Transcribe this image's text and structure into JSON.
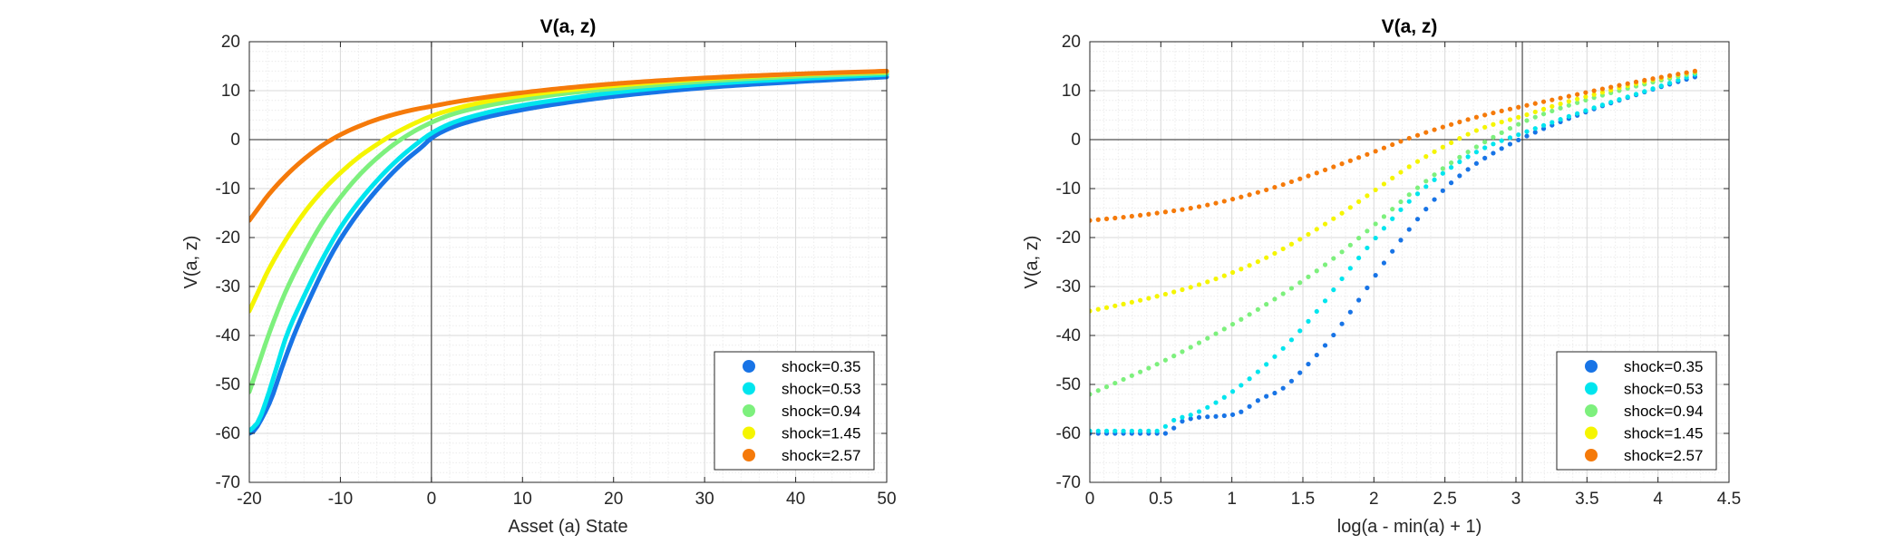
{
  "chart_data": [
    {
      "type": "line",
      "title": "V(a, z)",
      "xlabel": "Asset (a) State",
      "ylabel": "V(a, z)",
      "xlim": [
        -20,
        50
      ],
      "ylim": [
        -70,
        20
      ],
      "xticks": [
        -20,
        -10,
        0,
        10,
        20,
        30,
        40,
        50
      ],
      "yticks": [
        -70,
        -60,
        -50,
        -40,
        -30,
        -20,
        -10,
        0,
        10,
        20
      ],
      "xtick_labels": [
        "-20",
        "-10",
        "0",
        "10",
        "20",
        "30",
        "40",
        "50"
      ],
      "ytick_labels": [
        "-70",
        "-60",
        "-50",
        "-40",
        "-30",
        "-20",
        "-10",
        "0",
        "10",
        "20"
      ],
      "grid": "on (major and minor)",
      "reference_lines": {
        "x": 0,
        "y": 0
      },
      "legend_position": "bottom-right",
      "series": [
        {
          "name": "shock=0.35",
          "color": "#1874e6",
          "x": [
            -20,
            -19.5,
            -18.5,
            -17.5,
            -16.5,
            -15,
            -13,
            -11,
            -9,
            -7,
            -5,
            -3,
            -1,
            0,
            2,
            5,
            10,
            15,
            20,
            30,
            40,
            50
          ],
          "y": [
            -60,
            -59.5,
            -56.5,
            -52.5,
            -47,
            -39.5,
            -31,
            -23.5,
            -17.5,
            -12.5,
            -8.2,
            -4.5,
            -1.4,
            0.3,
            2.3,
            4.1,
            6.1,
            7.6,
            8.8,
            10.6,
            11.8,
            12.8
          ]
        },
        {
          "name": "shock=0.53",
          "color": "#00e5ee",
          "x": [
            -20,
            -19,
            -18,
            -17,
            -16,
            -14,
            -12,
            -10,
            -8,
            -6,
            -4,
            -2,
            0,
            2,
            5,
            10,
            15,
            20,
            30,
            40,
            50
          ],
          "y": [
            -59.5,
            -57.5,
            -52.5,
            -46.5,
            -40.5,
            -32,
            -24.5,
            -18,
            -12.8,
            -8.4,
            -4.6,
            -1.4,
            1.3,
            3.2,
            5,
            7,
            8.4,
            9.6,
            11.3,
            12.4,
            13.3
          ]
        },
        {
          "name": "shock=0.94",
          "color": "#7df07d",
          "x": [
            -20,
            -19,
            -18,
            -17,
            -16,
            -14,
            -12,
            -10,
            -8,
            -6,
            -4,
            -2,
            0,
            2,
            5,
            10,
            15,
            20,
            30,
            40,
            50
          ],
          "y": [
            -51.5,
            -46,
            -40.5,
            -35.5,
            -31,
            -23.5,
            -17,
            -11.8,
            -7.4,
            -3.8,
            -0.8,
            1.6,
            3.5,
            5,
            6.5,
            8.2,
            9.5,
            10.4,
            11.9,
            12.9,
            13.6
          ]
        },
        {
          "name": "shock=1.45",
          "color": "#f5f500",
          "x": [
            -20,
            -19,
            -18,
            -16,
            -14,
            -12,
            -10,
            -8,
            -6,
            -4,
            -2,
            0,
            2,
            5,
            10,
            15,
            20,
            30,
            40,
            50
          ],
          "y": [
            -35,
            -31,
            -27,
            -20.5,
            -15,
            -10.5,
            -6.8,
            -3.6,
            -1,
            1.3,
            3.2,
            4.8,
            6,
            7.4,
            9,
            10.1,
            11,
            12.4,
            13.3,
            13.9
          ]
        },
        {
          "name": "shock=2.57",
          "color": "#f57a0a",
          "x": [
            -20,
            -19,
            -18,
            -16,
            -14,
            -12,
            -10,
            -8,
            -6,
            -4,
            -2,
            0,
            2,
            5,
            10,
            15,
            20,
            30,
            40,
            50
          ],
          "y": [
            -16.5,
            -14,
            -11.5,
            -7.4,
            -4,
            -1.2,
            1,
            2.7,
            4.1,
            5.2,
            6.1,
            6.8,
            7.5,
            8.4,
            9.6,
            10.6,
            11.4,
            12.6,
            13.4,
            14
          ]
        }
      ]
    },
    {
      "type": "scatter",
      "title": "V(a, z)",
      "xlabel": "log(a - min(a) + 1)",
      "ylabel": "V(a, z)",
      "xlim": [
        0,
        4.5
      ],
      "ylim": [
        -70,
        20
      ],
      "xticks": [
        0,
        0.5,
        1,
        1.5,
        2,
        2.5,
        3,
        3.5,
        4,
        4.5
      ],
      "yticks": [
        -70,
        -60,
        -50,
        -40,
        -30,
        -20,
        -10,
        0,
        10,
        20
      ],
      "xtick_labels": [
        "0",
        "0.5",
        "1",
        "1.5",
        "2",
        "2.5",
        "3",
        "3.5",
        "4",
        "4.5"
      ],
      "ytick_labels": [
        "-70",
        "-60",
        "-50",
        "-40",
        "-30",
        "-20",
        "-10",
        "0",
        "10",
        "20"
      ],
      "grid": "on (major and minor)",
      "reference_lines": {
        "x": 3.045,
        "y": 0
      },
      "legend_position": "bottom-right",
      "series": [
        {
          "name": "shock=0.35",
          "color": "#1874e6",
          "x": [
            0,
            0.3,
            0.55,
            0.62,
            0.75,
            0.9,
            1.05,
            1.2,
            1.35,
            1.5,
            1.7,
            1.9,
            2.1,
            2.3,
            2.5,
            2.7,
            2.9,
            3.045,
            3.2,
            3.4,
            3.6,
            3.8,
            4,
            4.26
          ],
          "y": [
            -60,
            -60,
            -60,
            -58,
            -56.8,
            -56.5,
            -55.8,
            -53,
            -51,
            -47,
            -40.5,
            -32.5,
            -24,
            -16.5,
            -10,
            -5.3,
            -1.8,
            0.3,
            2.3,
            4.6,
            6.8,
            8.7,
            10.6,
            12.8
          ]
        },
        {
          "name": "shock=0.53",
          "color": "#00e5ee",
          "x": [
            0,
            0.3,
            0.5,
            0.55,
            0.75,
            0.9,
            1.05,
            1.2,
            1.4,
            1.6,
            1.8,
            2,
            2.2,
            2.4,
            2.6,
            2.8,
            3.045,
            3.3,
            3.6,
            3.9,
            4.26
          ],
          "y": [
            -59.5,
            -59.5,
            -59.5,
            -58,
            -55.8,
            -53.5,
            -50.5,
            -47,
            -41.5,
            -35,
            -27.5,
            -20.5,
            -14,
            -8.8,
            -4.6,
            -1.4,
            1.3,
            4,
            7,
            9.8,
            13.3
          ]
        },
        {
          "name": "shock=0.94",
          "color": "#7df07d",
          "x": [
            0,
            0.25,
            0.5,
            0.75,
            1,
            1.25,
            1.5,
            1.75,
            2,
            2.25,
            2.5,
            2.75,
            3.045,
            3.3,
            3.6,
            3.9,
            4.26
          ],
          "y": [
            -52,
            -48.8,
            -45.5,
            -41.8,
            -37.8,
            -33.5,
            -28.8,
            -23.5,
            -17.5,
            -11.2,
            -5.6,
            -1,
            3.5,
            6.3,
            9,
            11.3,
            13.6
          ]
        },
        {
          "name": "shock=1.45",
          "color": "#f5f500",
          "x": [
            0,
            0.25,
            0.5,
            0.75,
            1,
            1.25,
            1.5,
            1.75,
            2,
            2.25,
            2.5,
            2.75,
            3.045,
            3.3,
            3.6,
            3.9,
            4.26
          ],
          "y": [
            -35,
            -33.5,
            -31.8,
            -29.8,
            -27.2,
            -24,
            -20,
            -15.5,
            -10.5,
            -5.5,
            -1.3,
            2.2,
            4.8,
            7.2,
            9.6,
            11.8,
            13.9
          ]
        },
        {
          "name": "shock=2.57",
          "color": "#f57a0a",
          "x": [
            0,
            0.25,
            0.5,
            0.75,
            1,
            1.25,
            1.5,
            1.75,
            2,
            2.25,
            2.5,
            2.75,
            3.045,
            3.3,
            3.6,
            3.9,
            4.26
          ],
          "y": [
            -16.5,
            -15.8,
            -14.9,
            -13.8,
            -12.2,
            -10.2,
            -7.8,
            -5.2,
            -2.5,
            0.3,
            2.7,
            4.8,
            6.8,
            8.4,
            10.3,
            12.1,
            14
          ]
        }
      ]
    }
  ]
}
